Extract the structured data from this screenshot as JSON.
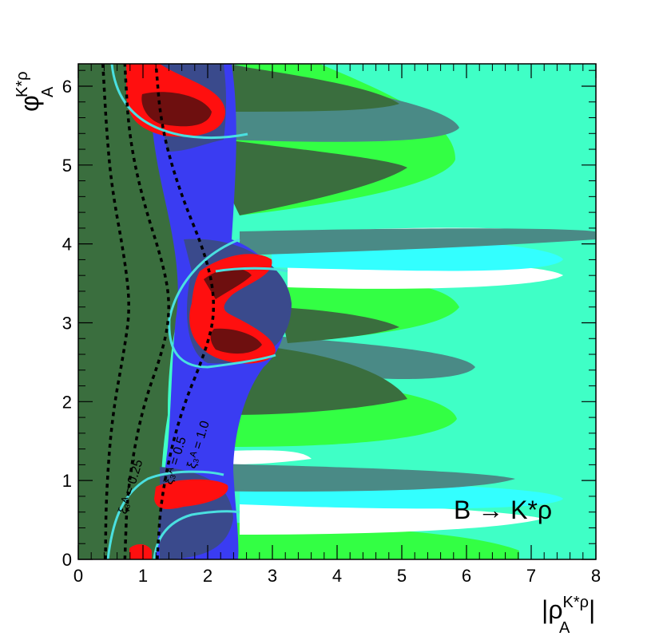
{
  "chart_data": {
    "type": "contour",
    "xlabel_main": "|ρ",
    "xlabel_sup": "K*ρ",
    "xlabel_sub": "A",
    "xlabel_end": "|",
    "ylabel_main": "φ",
    "ylabel_sup": "K*ρ",
    "ylabel_sub": "A",
    "xlim": [
      0,
      8
    ],
    "ylim": [
      0,
      6.283
    ],
    "xticks": [
      "0",
      "1",
      "2",
      "3",
      "4",
      "5",
      "6",
      "7",
      "8"
    ],
    "yticks": [
      "0",
      "1",
      "2",
      "3",
      "4",
      "5",
      "6"
    ],
    "annotation": "B → K*ρ",
    "colors": {
      "dark_green": "#3a6e3e",
      "aquamarine": "#3fffc6",
      "bright_green": "#33ff44",
      "cyan": "#33ffff",
      "teal_grey": "#4a8a86",
      "blue": "#3a3cf2",
      "navy_grey": "#3a4a8c",
      "red": "#ff0f0f",
      "maroon": "#6e0f0f",
      "cyan_line": "#4ae0e0",
      "white": "#ffffff"
    },
    "dashed_curves": [
      {
        "label": "ξ₃ᴬ = 0.25",
        "points": [
          [
            0.42,
            0.0
          ],
          [
            0.43,
            0.8
          ],
          [
            0.52,
            1.8
          ],
          [
            0.72,
            2.7
          ],
          [
            0.8,
            3.2
          ],
          [
            0.72,
            3.8
          ],
          [
            0.52,
            4.7
          ],
          [
            0.44,
            5.4
          ],
          [
            0.38,
            6.28
          ]
        ]
      },
      {
        "label": "ξ₃ᴬ = 0.5",
        "points": [
          [
            0.72,
            0.0
          ],
          [
            0.76,
            0.9
          ],
          [
            0.98,
            1.9
          ],
          [
            1.33,
            2.7
          ],
          [
            1.42,
            3.2
          ],
          [
            1.33,
            3.7
          ],
          [
            0.98,
            4.6
          ],
          [
            0.78,
            5.4
          ],
          [
            0.72,
            6.28
          ]
        ]
      },
      {
        "label": "ξ₃ᴬ = 1.0",
        "points": [
          [
            1.22,
            0.0
          ],
          [
            1.28,
            0.8
          ],
          [
            1.55,
            1.8
          ],
          [
            2.0,
            2.7
          ],
          [
            2.12,
            3.2
          ],
          [
            2.0,
            3.8
          ],
          [
            1.55,
            4.7
          ],
          [
            1.28,
            5.5
          ],
          [
            1.2,
            6.28
          ]
        ]
      }
    ]
  }
}
